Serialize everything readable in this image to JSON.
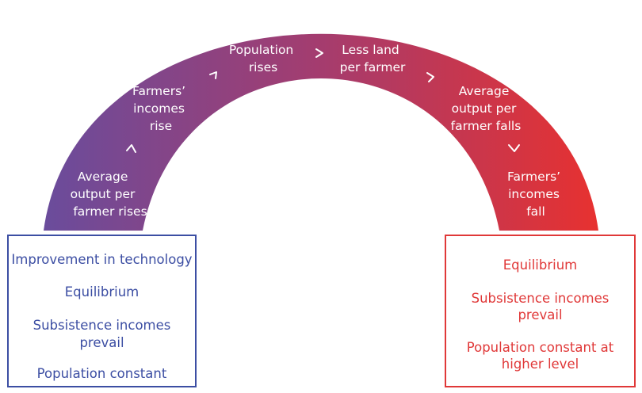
{
  "arc": {
    "colors": {
      "start": "#6a4c9c",
      "end": "#e8312f",
      "text": "#ffffff"
    },
    "labels": [
      [
        "Average",
        "output per",
        "farmer rises"
      ],
      [
        "Farmers’",
        "incomes",
        "rise"
      ],
      [
        "Population",
        "rises"
      ],
      [
        "Less land",
        "per farmer"
      ],
      [
        "Average",
        "output per",
        "farmer falls"
      ],
      [
        "Farmers’",
        "incomes",
        "fall"
      ]
    ]
  },
  "left_box": {
    "color": "#3c4ea3",
    "line1": "Improvement in technology",
    "line2": "Equilibrium",
    "line3a": "Subsistence incomes",
    "line3b": "prevail",
    "line4": "Population constant"
  },
  "right_box": {
    "color": "#e03838",
    "line1": "Equilibrium",
    "line2a": "Subsistence incomes",
    "line2b": "prevail",
    "line3a": "Population constant at",
    "line3b": "higher level"
  }
}
